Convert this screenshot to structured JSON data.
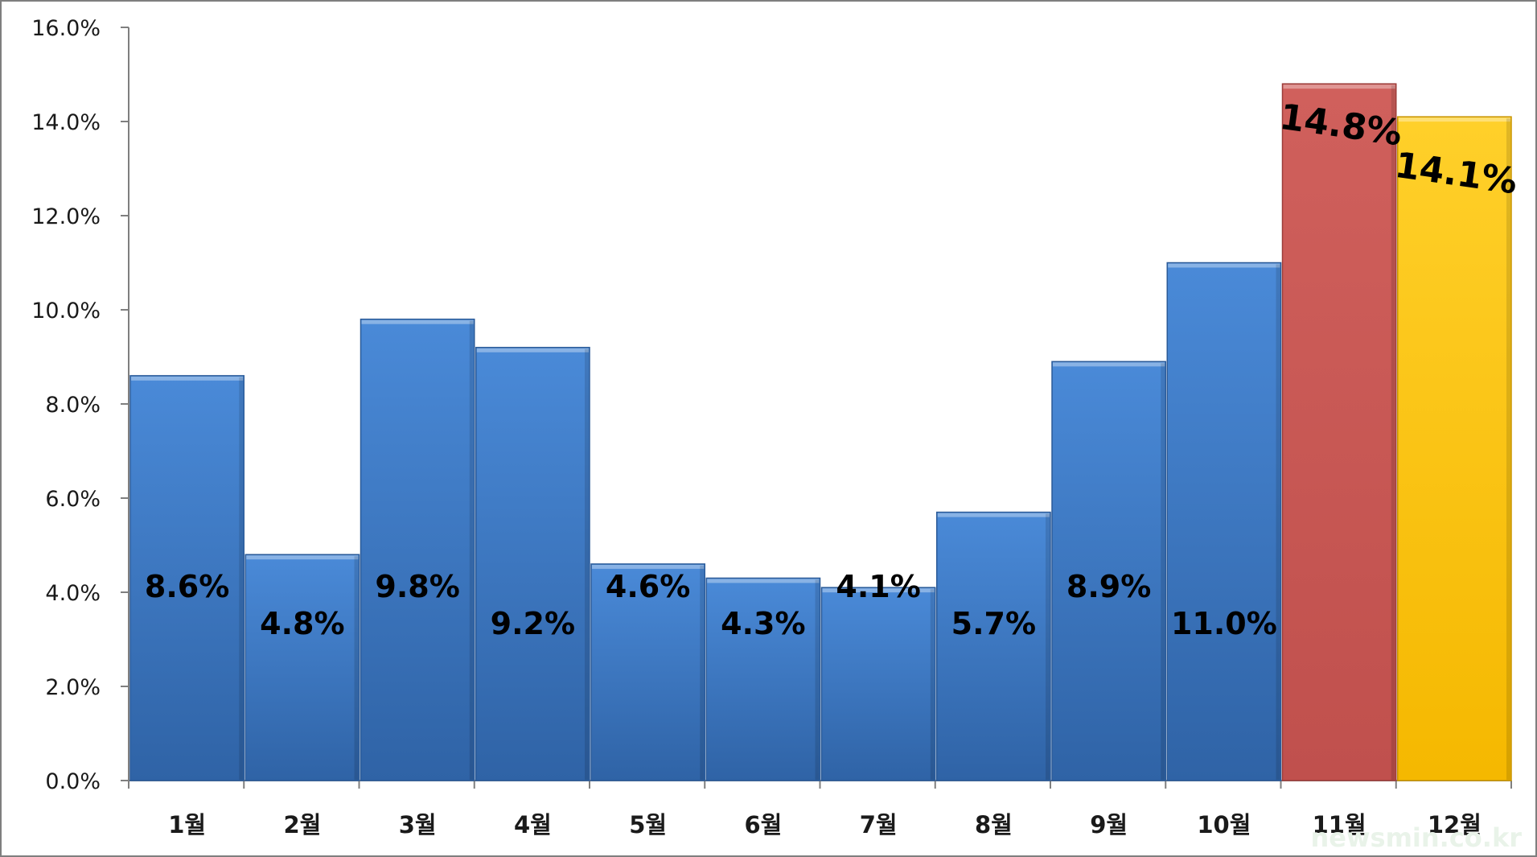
{
  "chart_data": {
    "type": "bar",
    "categories": [
      "1월",
      "2월",
      "3월",
      "4월",
      "5월",
      "6월",
      "7월",
      "8월",
      "9월",
      "10월",
      "11월",
      "12월"
    ],
    "values": [
      8.6,
      4.8,
      9.8,
      9.2,
      4.6,
      4.3,
      4.1,
      5.7,
      8.9,
      11.0,
      14.8,
      14.1
    ],
    "data_labels": [
      "8.6%",
      "4.8%",
      "9.8%",
      "9.2%",
      "4.6%",
      "4.3%",
      "4.1%",
      "5.7%",
      "8.9%",
      "11.0%",
      "14.8%",
      "14.1%"
    ],
    "y_ticks": [
      "0.0%",
      "2.0%",
      "4.0%",
      "6.0%",
      "8.0%",
      "10.0%",
      "12.0%",
      "14.0%",
      "16.0%"
    ],
    "ylim": [
      0,
      16
    ],
    "title": "",
    "xlabel": "",
    "ylabel": "",
    "grid": false,
    "colors": {
      "default": "#3a78c8",
      "highlight_11": "#c0504d",
      "highlight_12": "#ffc000"
    }
  },
  "watermark": "newsmin.co.kr"
}
